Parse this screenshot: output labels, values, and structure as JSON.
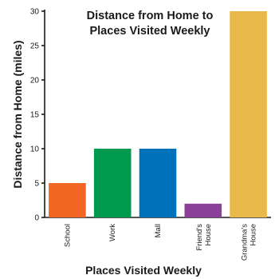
{
  "chart_data": {
    "type": "bar",
    "title_lines": [
      "Distance from Home to",
      "Places Visited Weekly"
    ],
    "xlabel": "Places Visited Weekly",
    "ylabel": "Distance from Home (miles)",
    "ylim": [
      0,
      30
    ],
    "yticks": [
      "0",
      "5",
      "10",
      "15",
      "20",
      "25",
      "30"
    ],
    "categories": [
      {
        "lines": [
          "School"
        ],
        "value": 5,
        "color": "#f26522"
      },
      {
        "lines": [
          "Work"
        ],
        "value": 10,
        "color": "#009a4e"
      },
      {
        "lines": [
          "Mall"
        ],
        "value": 10,
        "color": "#0072bc"
      },
      {
        "lines": [
          "Friend's",
          "House"
        ],
        "value": 2,
        "color": "#8a3f98"
      },
      {
        "lines": [
          "Grandma's",
          "House"
        ],
        "value": 30,
        "color": "#e8b84a"
      }
    ],
    "grid": false,
    "legend": "none"
  }
}
